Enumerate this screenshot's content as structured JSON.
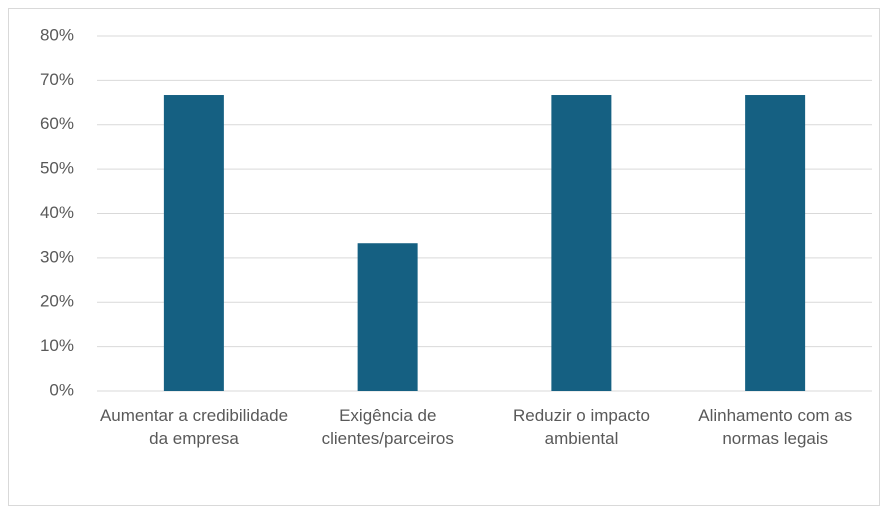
{
  "chart_data": {
    "type": "bar",
    "categories": [
      "Aumentar a credibilidade da empresa",
      "Exigência de clientes/parceiros",
      "Reduzir o impacto ambiental",
      "Alinhamento com as normas legais"
    ],
    "values": [
      66.7,
      33.3,
      66.7,
      66.7
    ],
    "color": "#156082",
    "ylim": [
      0,
      80
    ],
    "yticks": [
      {
        "value": 0,
        "label": "0%"
      },
      {
        "value": 10,
        "label": "10%"
      },
      {
        "value": 20,
        "label": "20%"
      },
      {
        "value": 30,
        "label": "30%"
      },
      {
        "value": 40,
        "label": "40%"
      },
      {
        "value": 50,
        "label": "50%"
      },
      {
        "value": 60,
        "label": "60%"
      },
      {
        "value": 70,
        "label": "70%"
      },
      {
        "value": 80,
        "label": "80%"
      }
    ],
    "grid": true
  }
}
